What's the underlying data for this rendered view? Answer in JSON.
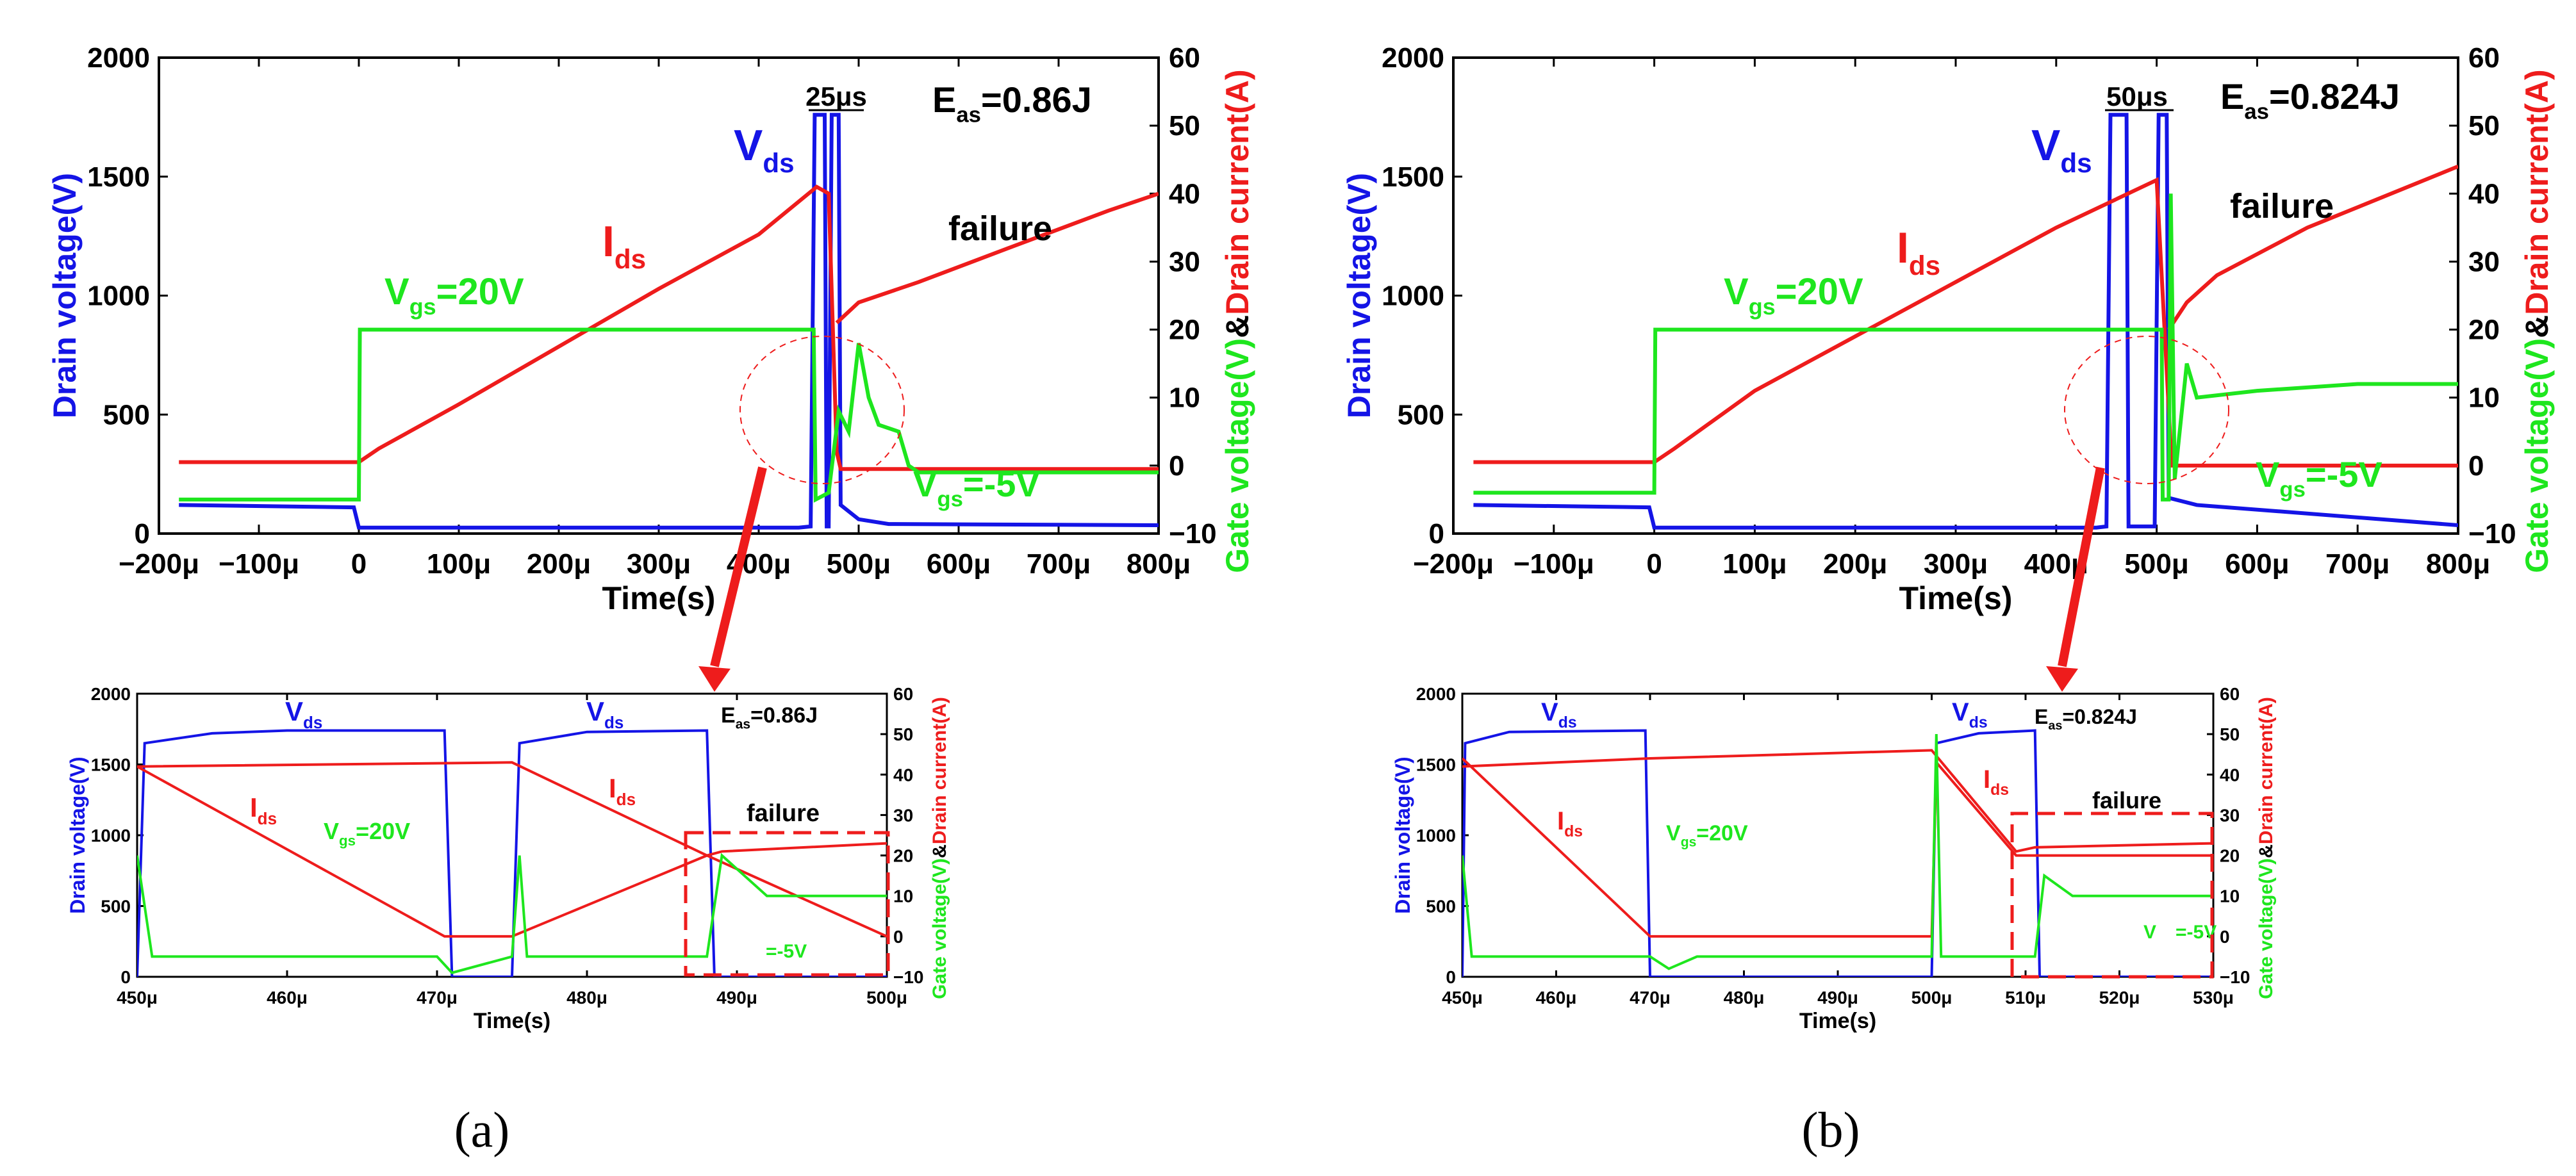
{
  "figure": {
    "captions": [
      "(a)",
      "(b)"
    ]
  },
  "colors": {
    "vds": "#1414e6",
    "ids": "#ee1c1c",
    "vgs": "#1ee61e",
    "axis": "#000000"
  },
  "chart_data": [
    {
      "id": "a-main",
      "type": "line",
      "title": "",
      "xlabel": "Time(s)",
      "ylabel_left": "Drain voltage(V)",
      "ylabel_right_green": "Gate voltage(V)",
      "ylabel_right_amp": "&",
      "ylabel_right_red": "Drain current(A)",
      "xlim": [
        -200,
        800
      ],
      "ylim_left": [
        0,
        2000
      ],
      "ylim_right": [
        -10,
        60
      ],
      "x_ticks": [
        "−200μ",
        "−100μ",
        "0",
        "100μ",
        "200μ",
        "300μ",
        "400μ",
        "500μ",
        "600μ",
        "700μ",
        "800μ"
      ],
      "y_left_ticks": [
        "0",
        "500",
        "1000",
        "1500",
        "2000"
      ],
      "y_right_ticks": [
        "−10",
        "0",
        "10",
        "20",
        "30",
        "40",
        "50",
        "60"
      ],
      "annotations": {
        "eas_main": "E",
        "eas_sub": "as",
        "eas_val": "=0.86J",
        "duration": "25μs",
        "vds_main": "V",
        "vds_sub": "ds",
        "ids_main": "I",
        "ids_sub": "ds",
        "vgs_on_main": "V",
        "vgs_on_sub": "gs",
        "vgs_on_val": "=20V",
        "vgs_off_main": "V",
        "vgs_off_sub": "gs",
        "vgs_off_val": "=-5V",
        "failure": "failure"
      },
      "series": [
        {
          "name": "Vds",
          "axis": "left",
          "points": [
            [
              -180,
              120
            ],
            [
              -5,
              110
            ],
            [
              0,
              25
            ],
            [
              440,
              25
            ],
            [
              452,
              30
            ],
            [
              456,
              1760
            ],
            [
              466,
              1760
            ],
            [
              468,
              30
            ],
            [
              470,
              30
            ],
            [
              473,
              1760
            ],
            [
              480,
              1760
            ],
            [
              482,
              120
            ],
            [
              500,
              60
            ],
            [
              530,
              40
            ],
            [
              800,
              35
            ]
          ]
        },
        {
          "name": "Ids",
          "axis": "right",
          "points": [
            [
              -180,
              0.5
            ],
            [
              0,
              0.5
            ],
            [
              20,
              2.5
            ],
            [
              100,
              9
            ],
            [
              200,
              17.5
            ],
            [
              300,
              26
            ],
            [
              400,
              34
            ],
            [
              458,
              41
            ],
            [
              470,
              40
            ],
            [
              478,
              2
            ],
            [
              482,
              -0.5
            ],
            [
              800,
              -0.5
            ]
          ]
        },
        {
          "name": "Ids_after_failure",
          "axis": "right",
          "points": [
            [
              478,
              21
            ],
            [
              500,
              24
            ],
            [
              560,
              27
            ],
            [
              650,
              32
            ],
            [
              750,
              37.5
            ],
            [
              800,
              40
            ]
          ]
        },
        {
          "name": "Vgs",
          "axis": "right",
          "points": [
            [
              -180,
              -5
            ],
            [
              0,
              -5
            ],
            [
              1,
              20
            ],
            [
              455,
              20
            ],
            [
              457,
              -5
            ],
            [
              470,
              -4
            ],
            [
              480,
              8
            ],
            [
              490,
              5
            ],
            [
              500,
              18
            ],
            [
              510,
              10
            ],
            [
              520,
              6
            ],
            [
              540,
              5
            ],
            [
              550,
              0
            ],
            [
              560,
              -1
            ],
            [
              600,
              -1
            ],
            [
              800,
              -1
            ]
          ]
        }
      ]
    },
    {
      "id": "a-zoom",
      "type": "line",
      "xlabel": "Time(s)",
      "ylabel_left": "Drain voltage(V)",
      "ylabel_right_green": "Gate voltage(V)",
      "ylabel_right_amp": "&",
      "ylabel_right_red": "Drain current(A)",
      "xlim": [
        450,
        500
      ],
      "ylim_left": [
        0,
        2000
      ],
      "ylim_right": [
        -10,
        60
      ],
      "x_ticks": [
        "450μ",
        "460μ",
        "470μ",
        "480μ",
        "490μ",
        "500μ"
      ],
      "y_left_ticks": [
        "0",
        "500",
        "1000",
        "1500",
        "2000"
      ],
      "y_right_ticks": [
        "−10",
        "0",
        "10",
        "20",
        "30",
        "40",
        "50",
        "60"
      ],
      "annotations": {
        "vds1_main": "V",
        "vds1_sub": "ds",
        "vds2_main": "V",
        "vds2_sub": "ds",
        "ids1_main": "I",
        "ids1_sub": "ds",
        "ids2_main": "I",
        "ids2_sub": "ds",
        "eas_main": "E",
        "eas_sub": "as",
        "eas_val": "=0.86J",
        "vgs_on_main": "V",
        "vgs_on_sub": "gs",
        "vgs_on_val": "=20V",
        "vgs_off_val": "=-5V",
        "failure": "failure"
      },
      "series": [
        {
          "name": "Vds",
          "axis": "left",
          "points": [
            [
              450,
              0
            ],
            [
              450.5,
              1650
            ],
            [
              455,
              1720
            ],
            [
              460,
              1740
            ],
            [
              470.5,
              1740
            ],
            [
              471,
              0
            ],
            [
              475,
              0
            ],
            [
              475.5,
              1650
            ],
            [
              480,
              1730
            ],
            [
              488,
              1740
            ],
            [
              488.5,
              0
            ],
            [
              500,
              0
            ]
          ]
        },
        {
          "name": "Ids",
          "axis": "right",
          "points": [
            [
              450,
              42
            ],
            [
              470.5,
              0
            ],
            [
              475,
              0
            ],
            [
              488,
              20
            ],
            [
              500,
              0
            ]
          ]
        },
        {
          "name": "Ids_plateau",
          "axis": "right",
          "points": [
            [
              450,
              42
            ],
            [
              475,
              43
            ],
            [
              488,
              20
            ],
            [
              489,
              21
            ],
            [
              500,
              23
            ]
          ]
        },
        {
          "name": "Vgs",
          "axis": "right",
          "points": [
            [
              450,
              20
            ],
            [
              451,
              -5
            ],
            [
              470,
              -5
            ],
            [
              471,
              -9
            ],
            [
              475,
              -5
            ],
            [
              475.5,
              20
            ],
            [
              476,
              -5
            ],
            [
              488,
              -5
            ],
            [
              489,
              20
            ],
            [
              492,
              10
            ],
            [
              500,
              10
            ]
          ]
        }
      ]
    },
    {
      "id": "b-main",
      "type": "line",
      "xlabel": "Time(s)",
      "ylabel_left": "Drain voltage(V)",
      "ylabel_right_green": "Gate voltage(V)",
      "ylabel_right_amp": "&",
      "ylabel_right_red": "Drain current(A)",
      "xlim": [
        -200,
        800
      ],
      "ylim_left": [
        0,
        2000
      ],
      "ylim_right": [
        -10,
        60
      ],
      "x_ticks": [
        "−200μ",
        "−100μ",
        "0",
        "100μ",
        "200μ",
        "300μ",
        "400μ",
        "500μ",
        "600μ",
        "700μ",
        "800μ"
      ],
      "y_left_ticks": [
        "0",
        "500",
        "1000",
        "1500",
        "2000"
      ],
      "y_right_ticks": [
        "−10",
        "0",
        "10",
        "20",
        "30",
        "40",
        "50",
        "60"
      ],
      "annotations": {
        "eas_main": "E",
        "eas_sub": "as",
        "eas_val": "=0.824J",
        "duration": "50μs",
        "vds_main": "V",
        "vds_sub": "ds",
        "ids_main": "I",
        "ids_sub": "ds",
        "vgs_on_main": "V",
        "vgs_on_sub": "gs",
        "vgs_on_val": "=20V",
        "vgs_off_main": "V",
        "vgs_off_sub": "gs",
        "vgs_off_val": "=-5V",
        "failure": "failure"
      },
      "series": [
        {
          "name": "Vds",
          "axis": "left",
          "points": [
            [
              -180,
              120
            ],
            [
              -5,
              110
            ],
            [
              0,
              25
            ],
            [
              440,
              25
            ],
            [
              450,
              30
            ],
            [
              454,
              1760
            ],
            [
              470,
              1760
            ],
            [
              472,
              30
            ],
            [
              498,
              30
            ],
            [
              502,
              1760
            ],
            [
              510,
              1760
            ],
            [
              512,
              150
            ],
            [
              540,
              120
            ],
            [
              800,
              35
            ]
          ]
        },
        {
          "name": "Ids",
          "axis": "right",
          "points": [
            [
              -180,
              0.5
            ],
            [
              0,
              0.5
            ],
            [
              20,
              2.5
            ],
            [
              100,
              11
            ],
            [
              200,
              19
            ],
            [
              300,
              27
            ],
            [
              400,
              35
            ],
            [
              500,
              42
            ],
            [
              515,
              0
            ],
            [
              800,
              0
            ]
          ]
        },
        {
          "name": "Ids_after_failure",
          "axis": "right",
          "points": [
            [
              512,
              20
            ],
            [
              530,
              24
            ],
            [
              560,
              28
            ],
            [
              650,
              35
            ],
            [
              750,
              41
            ],
            [
              800,
              44
            ]
          ]
        },
        {
          "name": "Vgs",
          "axis": "right",
          "points": [
            [
              -180,
              -4
            ],
            [
              0,
              -4
            ],
            [
              1,
              20
            ],
            [
              505,
              20
            ],
            [
              506,
              -5
            ],
            [
              512,
              -5
            ],
            [
              514,
              40
            ],
            [
              518,
              -2
            ],
            [
              530,
              15
            ],
            [
              540,
              10
            ],
            [
              600,
              11
            ],
            [
              700,
              12
            ],
            [
              800,
              12
            ]
          ]
        }
      ]
    },
    {
      "id": "b-zoom",
      "type": "line",
      "xlabel": "Time(s)",
      "ylabel_left": "Drain voltage(V)",
      "ylabel_right_green": "Gate voltage(V)",
      "ylabel_right_amp": "&",
      "ylabel_right_red": "Drain current(A)",
      "xlim": [
        450,
        530
      ],
      "ylim_left": [
        0,
        2000
      ],
      "ylim_right": [
        -10,
        60
      ],
      "x_ticks": [
        "450μ",
        "460μ",
        "470μ",
        "480μ",
        "490μ",
        "500μ",
        "510μ",
        "520μ",
        "530μ"
      ],
      "y_left_ticks": [
        "0",
        "500",
        "1000",
        "1500",
        "2000"
      ],
      "y_right_ticks": [
        "−10",
        "0",
        "10",
        "20",
        "30",
        "40",
        "50",
        "60"
      ],
      "annotations": {
        "vds1_main": "V",
        "vds1_sub": "ds",
        "vds2_main": "V",
        "vds2_sub": "ds",
        "ids1_main": "I",
        "ids1_sub": "ds",
        "ids2_main": "I",
        "ids2_sub": "ds",
        "eas_main": "E",
        "eas_sub": "as",
        "eas_val": "=0.824J",
        "vgs_on_main": "V",
        "vgs_on_sub": "gs",
        "vgs_on_val": "=20V",
        "vgs_off_main": "V",
        "vgs_off_val": "=-5V",
        "failure": "failure"
      },
      "series": [
        {
          "name": "Vds",
          "axis": "left",
          "points": [
            [
              450,
              0
            ],
            [
              450.3,
              1650
            ],
            [
              455,
              1730
            ],
            [
              469.5,
              1740
            ],
            [
              470,
              0
            ],
            [
              500,
              0
            ],
            [
              500.5,
              1650
            ],
            [
              505,
              1720
            ],
            [
              511,
              1740
            ],
            [
              511.5,
              0
            ],
            [
              530,
              0
            ]
          ]
        },
        {
          "name": "Ids",
          "axis": "right",
          "points": [
            [
              450,
              44
            ],
            [
              470,
              0
            ],
            [
              500,
              0
            ],
            [
              500.5,
              43
            ],
            [
              509,
              20
            ],
            [
              530,
              20
            ]
          ]
        },
        {
          "name": "Ids_plateau",
          "axis": "right",
          "points": [
            [
              450,
              42
            ],
            [
              470,
              44
            ],
            [
              500,
              46
            ],
            [
              509,
              21
            ],
            [
              511,
              22
            ],
            [
              530,
              23
            ]
          ]
        },
        {
          "name": "Vgs",
          "axis": "right",
          "points": [
            [
              450,
              20
            ],
            [
              451,
              -5
            ],
            [
              470,
              -5
            ],
            [
              472,
              -8
            ],
            [
              475,
              -5
            ],
            [
              500,
              -5
            ],
            [
              500.5,
              50
            ],
            [
              501,
              -5
            ],
            [
              511,
              -5
            ],
            [
              512,
              15
            ],
            [
              515,
              10
            ],
            [
              530,
              10
            ]
          ]
        }
      ]
    }
  ]
}
